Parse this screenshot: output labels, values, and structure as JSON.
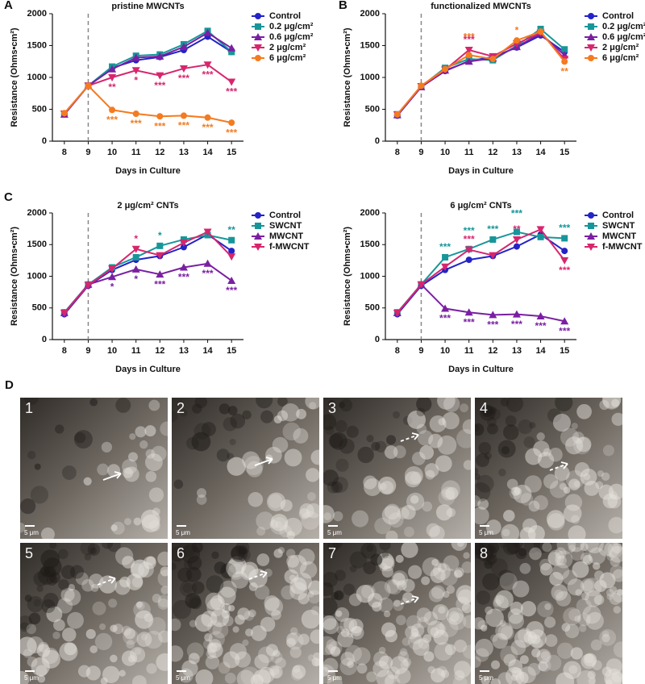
{
  "chart_data": [
    {
      "type": "line",
      "panel": "A",
      "title": "pristine MWCNTs",
      "x_label": "Days in Culture",
      "y_label": "Resistance (Ohms•cm²)",
      "x": [
        8,
        9,
        10,
        11,
        12,
        13,
        14,
        15
      ],
      "xlim": [
        7.5,
        15.5
      ],
      "xticks": [
        8,
        9,
        10,
        11,
        12,
        13,
        14,
        15
      ],
      "ylim": [
        0,
        2000
      ],
      "yticks": [
        0,
        500,
        1000,
        1500,
        2000
      ],
      "vline": 9,
      "legend": "right",
      "series": [
        {
          "name": "Control",
          "color": "#2323c8",
          "marker": "circle",
          "values": [
            420,
            870,
            1150,
            1270,
            1320,
            1430,
            1640,
            1400
          ]
        },
        {
          "name": "0.2 μg/cm²",
          "color": "#17969a",
          "marker": "square",
          "values": [
            430,
            870,
            1170,
            1340,
            1360,
            1520,
            1730,
            1400
          ]
        },
        {
          "name": "0.6 μg/cm²",
          "color": "#7a1fa2",
          "marker": "triangle-up",
          "values": [
            420,
            870,
            1130,
            1310,
            1330,
            1480,
            1700,
            1460
          ]
        },
        {
          "name": "2 μg/cm²",
          "color": "#d6266e",
          "marker": "triangle-down",
          "values": [
            430,
            870,
            1000,
            1110,
            1030,
            1140,
            1200,
            930
          ]
        },
        {
          "name": "6 μg/cm²",
          "color": "#f47b20",
          "marker": "circle",
          "values": [
            440,
            870,
            490,
            430,
            390,
            400,
            370,
            290
          ]
        }
      ],
      "annotations": [
        {
          "text": "**",
          "series": 3,
          "x": 10,
          "position": "below"
        },
        {
          "text": "*",
          "series": 3,
          "x": 11,
          "position": "below"
        },
        {
          "text": "***",
          "series": 3,
          "x": 12,
          "position": "below"
        },
        {
          "text": "***",
          "series": 3,
          "x": 13,
          "position": "below"
        },
        {
          "text": "***",
          "series": 3,
          "x": 14,
          "position": "below"
        },
        {
          "text": "***",
          "series": 3,
          "x": 15,
          "position": "below"
        },
        {
          "text": "***",
          "series": 4,
          "x": 10,
          "position": "below"
        },
        {
          "text": "***",
          "series": 4,
          "x": 11,
          "position": "below"
        },
        {
          "text": "***",
          "series": 4,
          "x": 12,
          "position": "below"
        },
        {
          "text": "***",
          "series": 4,
          "x": 13,
          "position": "below"
        },
        {
          "text": "***",
          "series": 4,
          "x": 14,
          "position": "below"
        },
        {
          "text": "***",
          "series": 4,
          "x": 15,
          "position": "below"
        }
      ]
    },
    {
      "type": "line",
      "panel": "B",
      "title": "functionalized MWCNTs",
      "x_label": "Days in Culture",
      "y_label": "Resistance (Ohms•cm²)",
      "x": [
        8,
        9,
        10,
        11,
        12,
        13,
        14,
        15
      ],
      "xlim": [
        7.5,
        15.5
      ],
      "xticks": [
        8,
        9,
        10,
        11,
        12,
        13,
        14,
        15
      ],
      "ylim": [
        0,
        2000
      ],
      "yticks": [
        0,
        500,
        1000,
        1500,
        2000
      ],
      "vline": 9,
      "legend": "right",
      "series": [
        {
          "name": "Control",
          "color": "#2323c8",
          "marker": "circle",
          "values": [
            400,
            850,
            1100,
            1260,
            1320,
            1470,
            1660,
            1400
          ]
        },
        {
          "name": "0.2 μg/cm²",
          "color": "#17969a",
          "marker": "square",
          "values": [
            420,
            860,
            1150,
            1290,
            1270,
            1500,
            1760,
            1440
          ]
        },
        {
          "name": "0.6 μg/cm²",
          "color": "#7a1fa2",
          "marker": "triangle-up",
          "values": [
            410,
            850,
            1110,
            1250,
            1300,
            1480,
            1690,
            1350
          ]
        },
        {
          "name": "2 μg/cm²",
          "color": "#d6266e",
          "marker": "triangle-down",
          "values": [
            420,
            860,
            1120,
            1430,
            1330,
            1530,
            1700,
            1290
          ]
        },
        {
          "name": "6 μg/cm²",
          "color": "#f47b20",
          "marker": "circle",
          "values": [
            420,
            870,
            1130,
            1350,
            1290,
            1580,
            1720,
            1250
          ]
        }
      ],
      "annotations": [
        {
          "text": "***",
          "series": 4,
          "x": 11,
          "position": "above2"
        },
        {
          "text": "***",
          "series": 3,
          "x": 11,
          "position": "above"
        },
        {
          "text": "*",
          "series": 4,
          "x": 13,
          "position": "above"
        },
        {
          "text": "**",
          "series": 4,
          "x": 15,
          "position": "below"
        }
      ]
    },
    {
      "type": "line",
      "panel": "C",
      "title": "2 μg/cm² CNTs",
      "x_label": "Days in Culture",
      "y_label": "Resistance (Ohms•cm²)",
      "x": [
        8,
        9,
        10,
        11,
        12,
        13,
        14,
        15
      ],
      "xlim": [
        7.5,
        15.5
      ],
      "xticks": [
        8,
        9,
        10,
        11,
        12,
        13,
        14,
        15
      ],
      "ylim": [
        0,
        2000
      ],
      "yticks": [
        0,
        500,
        1000,
        1500,
        2000
      ],
      "vline": 9,
      "legend": "right",
      "series": [
        {
          "name": "Control",
          "color": "#2323c8",
          "marker": "circle",
          "values": [
            400,
            850,
            1100,
            1260,
            1320,
            1460,
            1660,
            1400
          ]
        },
        {
          "name": "SWCNT",
          "color": "#17969a",
          "marker": "square",
          "values": [
            430,
            870,
            1140,
            1300,
            1480,
            1580,
            1650,
            1570
          ]
        },
        {
          "name": "MWCNT",
          "color": "#7a1fa2",
          "marker": "triangle-up",
          "values": [
            420,
            870,
            990,
            1110,
            1030,
            1140,
            1200,
            930
          ]
        },
        {
          "name": "f-MWCNT",
          "color": "#d6266e",
          "marker": "triangle-down",
          "values": [
            420,
            860,
            1120,
            1430,
            1330,
            1530,
            1700,
            1310
          ]
        }
      ],
      "annotations": [
        {
          "text": "*",
          "series": 2,
          "x": 10,
          "position": "below"
        },
        {
          "text": "*",
          "series": 2,
          "x": 11,
          "position": "below"
        },
        {
          "text": "***",
          "series": 2,
          "x": 12,
          "position": "below"
        },
        {
          "text": "***",
          "series": 2,
          "x": 13,
          "position": "below"
        },
        {
          "text": "***",
          "series": 2,
          "x": 14,
          "position": "below"
        },
        {
          "text": "***",
          "series": 2,
          "x": 15,
          "position": "below"
        },
        {
          "text": "*",
          "series": 3,
          "x": 11,
          "position": "above"
        },
        {
          "text": "*",
          "series": 1,
          "x": 12,
          "position": "above"
        },
        {
          "text": "**",
          "series": 1,
          "x": 15,
          "position": "above"
        }
      ]
    },
    {
      "type": "line",
      "title": "6 μg/cm² CNTs",
      "x_label": "Days in Culture",
      "y_label": "Resistance (Ohms•cm²)",
      "x": [
        8,
        9,
        10,
        11,
        12,
        13,
        14,
        15
      ],
      "xlim": [
        7.5,
        15.5
      ],
      "xticks": [
        8,
        9,
        10,
        11,
        12,
        13,
        14,
        15
      ],
      "ylim": [
        0,
        2000
      ],
      "yticks": [
        0,
        500,
        1000,
        1500,
        2000
      ],
      "vline": 9,
      "legend": "right",
      "series": [
        {
          "name": "Control",
          "color": "#2323c8",
          "marker": "circle",
          "values": [
            400,
            850,
            1100,
            1260,
            1320,
            1470,
            1660,
            1400
          ]
        },
        {
          "name": "SWCNT",
          "color": "#17969a",
          "marker": "square",
          "values": [
            430,
            870,
            1300,
            1430,
            1580,
            1700,
            1620,
            1600
          ]
        },
        {
          "name": "MWCNT",
          "color": "#7a1fa2",
          "marker": "triangle-up",
          "values": [
            420,
            870,
            490,
            430,
            390,
            400,
            370,
            290
          ]
        },
        {
          "name": "f-MWCNT",
          "color": "#d6266e",
          "marker": "triangle-down",
          "values": [
            420,
            870,
            1150,
            1420,
            1330,
            1580,
            1740,
            1250
          ]
        }
      ],
      "annotations": [
        {
          "text": "***",
          "series": 1,
          "x": 10,
          "position": "above"
        },
        {
          "text": "***",
          "series": 1,
          "x": 11,
          "position": "above2"
        },
        {
          "text": "***",
          "series": 1,
          "x": 12,
          "position": "above"
        },
        {
          "text": "***",
          "series": 1,
          "x": 13,
          "position": "above2"
        },
        {
          "text": "***",
          "series": 1,
          "x": 15,
          "position": "above"
        },
        {
          "text": "***",
          "series": 3,
          "x": 11,
          "position": "above"
        },
        {
          "text": "**",
          "series": 3,
          "x": 13,
          "position": "above"
        },
        {
          "text": "***",
          "series": 3,
          "x": 15,
          "position": "below"
        },
        {
          "text": "***",
          "series": 2,
          "x": 10,
          "position": "below"
        },
        {
          "text": "***",
          "series": 2,
          "x": 11,
          "position": "below"
        },
        {
          "text": "***",
          "series": 2,
          "x": 12,
          "position": "below"
        },
        {
          "text": "***",
          "series": 2,
          "x": 13,
          "position": "below"
        },
        {
          "text": "***",
          "series": 2,
          "x": 14,
          "position": "below"
        },
        {
          "text": "***",
          "series": 2,
          "x": 15,
          "position": "below"
        }
      ]
    }
  ],
  "micrographs": {
    "panel": "D",
    "panels": [
      {
        "label": "1",
        "scale": "5 μm"
      },
      {
        "label": "2",
        "scale": "5 μm"
      },
      {
        "label": "3",
        "scale": "5 μm"
      },
      {
        "label": "4",
        "scale": "5 μm"
      },
      {
        "label": "5",
        "scale": "5 μm"
      },
      {
        "label": "6",
        "scale": "5 μm"
      },
      {
        "label": "7",
        "scale": "5 μm"
      },
      {
        "label": "8",
        "scale": "5 μm"
      }
    ]
  }
}
